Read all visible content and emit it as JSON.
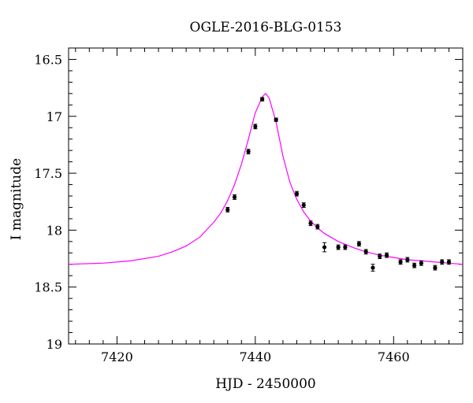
{
  "chart_data": {
    "type": "scatter",
    "title": "OGLE-2016-BLG-0153",
    "xlabel": "HJD - 2450000",
    "ylabel": "I magnitude",
    "xlim": [
      7413,
      7470
    ],
    "ylim": [
      19.0,
      16.4
    ],
    "y_inverted": true,
    "x_ticks": [
      7420,
      7440,
      7460
    ],
    "x_tick_labels": [
      "7420",
      "7440",
      "7460"
    ],
    "y_ticks": [
      16.5,
      17,
      17.5,
      18,
      18.5,
      19
    ],
    "y_tick_labels": [
      "16.5",
      "17",
      "17.5",
      "18",
      "18.5",
      "19"
    ],
    "grid": false,
    "legend": "none",
    "colors": {
      "data_points": "#000000",
      "model_curve": "#ff00ff"
    },
    "series": [
      {
        "kind": "points-with-errorbars",
        "x": [
          7436.0,
          7437.0,
          7439.0,
          7440.0,
          7441.0,
          7443.0,
          7446.0,
          7447.0,
          7448.0,
          7449.0,
          7450.0,
          7452.0,
          7453.0,
          7455.0,
          7456.0,
          7457.0,
          7458.0,
          7459.0,
          7461.0,
          7462.0,
          7463.0,
          7464.0,
          7466.0,
          7467.0,
          7468.0
        ],
        "y": [
          17.82,
          17.71,
          17.31,
          17.09,
          16.85,
          17.03,
          17.68,
          17.78,
          17.94,
          17.97,
          18.15,
          18.15,
          18.15,
          18.12,
          18.19,
          18.33,
          18.23,
          18.22,
          18.28,
          18.26,
          18.31,
          18.29,
          18.33,
          18.28,
          18.28
        ],
        "err": [
          0.02,
          0.02,
          0.02,
          0.02,
          0.01,
          0.01,
          0.02,
          0.02,
          0.02,
          0.02,
          0.04,
          0.02,
          0.02,
          0.02,
          0.02,
          0.03,
          0.02,
          0.02,
          0.02,
          0.02,
          0.02,
          0.02,
          0.02,
          0.02,
          0.02
        ]
      },
      {
        "kind": "model-curve",
        "x": [
          7413,
          7418,
          7422,
          7426,
          7428,
          7430,
          7432,
          7434,
          7435,
          7436,
          7437,
          7438,
          7439,
          7440,
          7441,
          7441.5,
          7442,
          7443,
          7444,
          7445,
          7446,
          7447,
          7448,
          7449,
          7450,
          7452,
          7454,
          7456,
          7458,
          7460,
          7462,
          7464,
          7466,
          7468,
          7470
        ],
        "y": [
          18.3,
          18.29,
          18.27,
          18.23,
          18.19,
          18.14,
          18.06,
          17.93,
          17.85,
          17.74,
          17.6,
          17.42,
          17.2,
          16.97,
          16.83,
          16.8,
          16.84,
          17.05,
          17.35,
          17.58,
          17.73,
          17.84,
          17.92,
          17.98,
          18.03,
          18.1,
          18.15,
          18.19,
          18.22,
          18.24,
          18.26,
          18.27,
          18.28,
          18.29,
          18.3
        ]
      }
    ]
  }
}
